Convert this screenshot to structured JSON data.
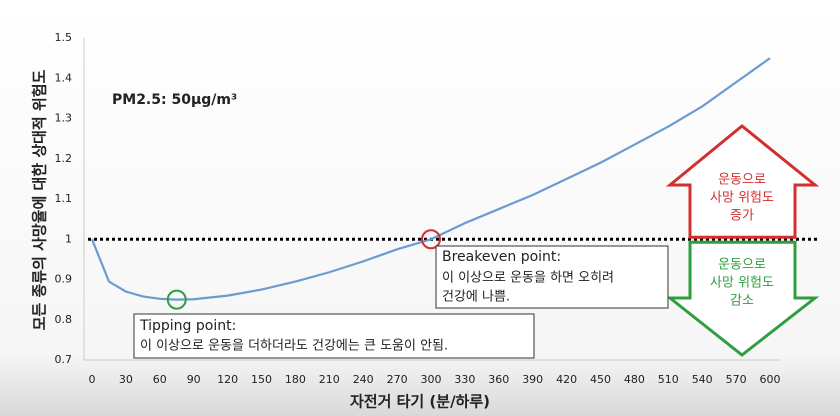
{
  "chart_data": {
    "type": "line",
    "x_label": "자전거 타기 (분/하루)",
    "y_label": "모든 종류의 사망율에 대한 상대적 위험도",
    "x": [
      0,
      15,
      30,
      45,
      60,
      75,
      90,
      120,
      150,
      180,
      210,
      240,
      270,
      300,
      330,
      360,
      390,
      420,
      450,
      480,
      510,
      540,
      570,
      600
    ],
    "values": [
      1.0,
      0.895,
      0.87,
      0.858,
      0.852,
      0.85,
      0.851,
      0.86,
      0.875,
      0.895,
      0.918,
      0.945,
      0.975,
      1.0,
      1.04,
      1.075,
      1.11,
      1.15,
      1.19,
      1.235,
      1.28,
      1.33,
      1.39,
      1.45
    ],
    "color": "#6a9bd1",
    "xlim": [
      0,
      600
    ],
    "xticks": [
      0,
      30,
      60,
      90,
      120,
      150,
      180,
      210,
      240,
      270,
      300,
      330,
      360,
      390,
      420,
      450,
      480,
      510,
      540,
      570,
      600
    ],
    "ylim": [
      0.7,
      1.5
    ],
    "yticks": [
      0.7,
      0.8,
      0.9,
      1,
      1.1,
      1.2,
      1.3,
      1.4,
      1.5
    ],
    "grid": false,
    "reference_line": 1,
    "subtitle": "PM2.5: 50μg/m³",
    "tipping_point": {
      "x": 75,
      "y": 0.85,
      "title": "Tipping point:",
      "text": "이 이상으로 운동을 더하더라도 건강에는 큰 도움이 안됨."
    },
    "breakeven_point": {
      "x": 300,
      "y": 1,
      "title": "Breakeven point:",
      "lines": [
        "이 이상으로 운동을 하면 오히려",
        "건강에 나쁨."
      ]
    },
    "increase_arrow": {
      "color": "#d32f2f",
      "lines": [
        "운동으로",
        "사망 위험도",
        "증가"
      ]
    },
    "decrease_arrow": {
      "color": "#2e9e3e",
      "lines": [
        "운동으로",
        "사망 위험도",
        "감소"
      ]
    }
  }
}
